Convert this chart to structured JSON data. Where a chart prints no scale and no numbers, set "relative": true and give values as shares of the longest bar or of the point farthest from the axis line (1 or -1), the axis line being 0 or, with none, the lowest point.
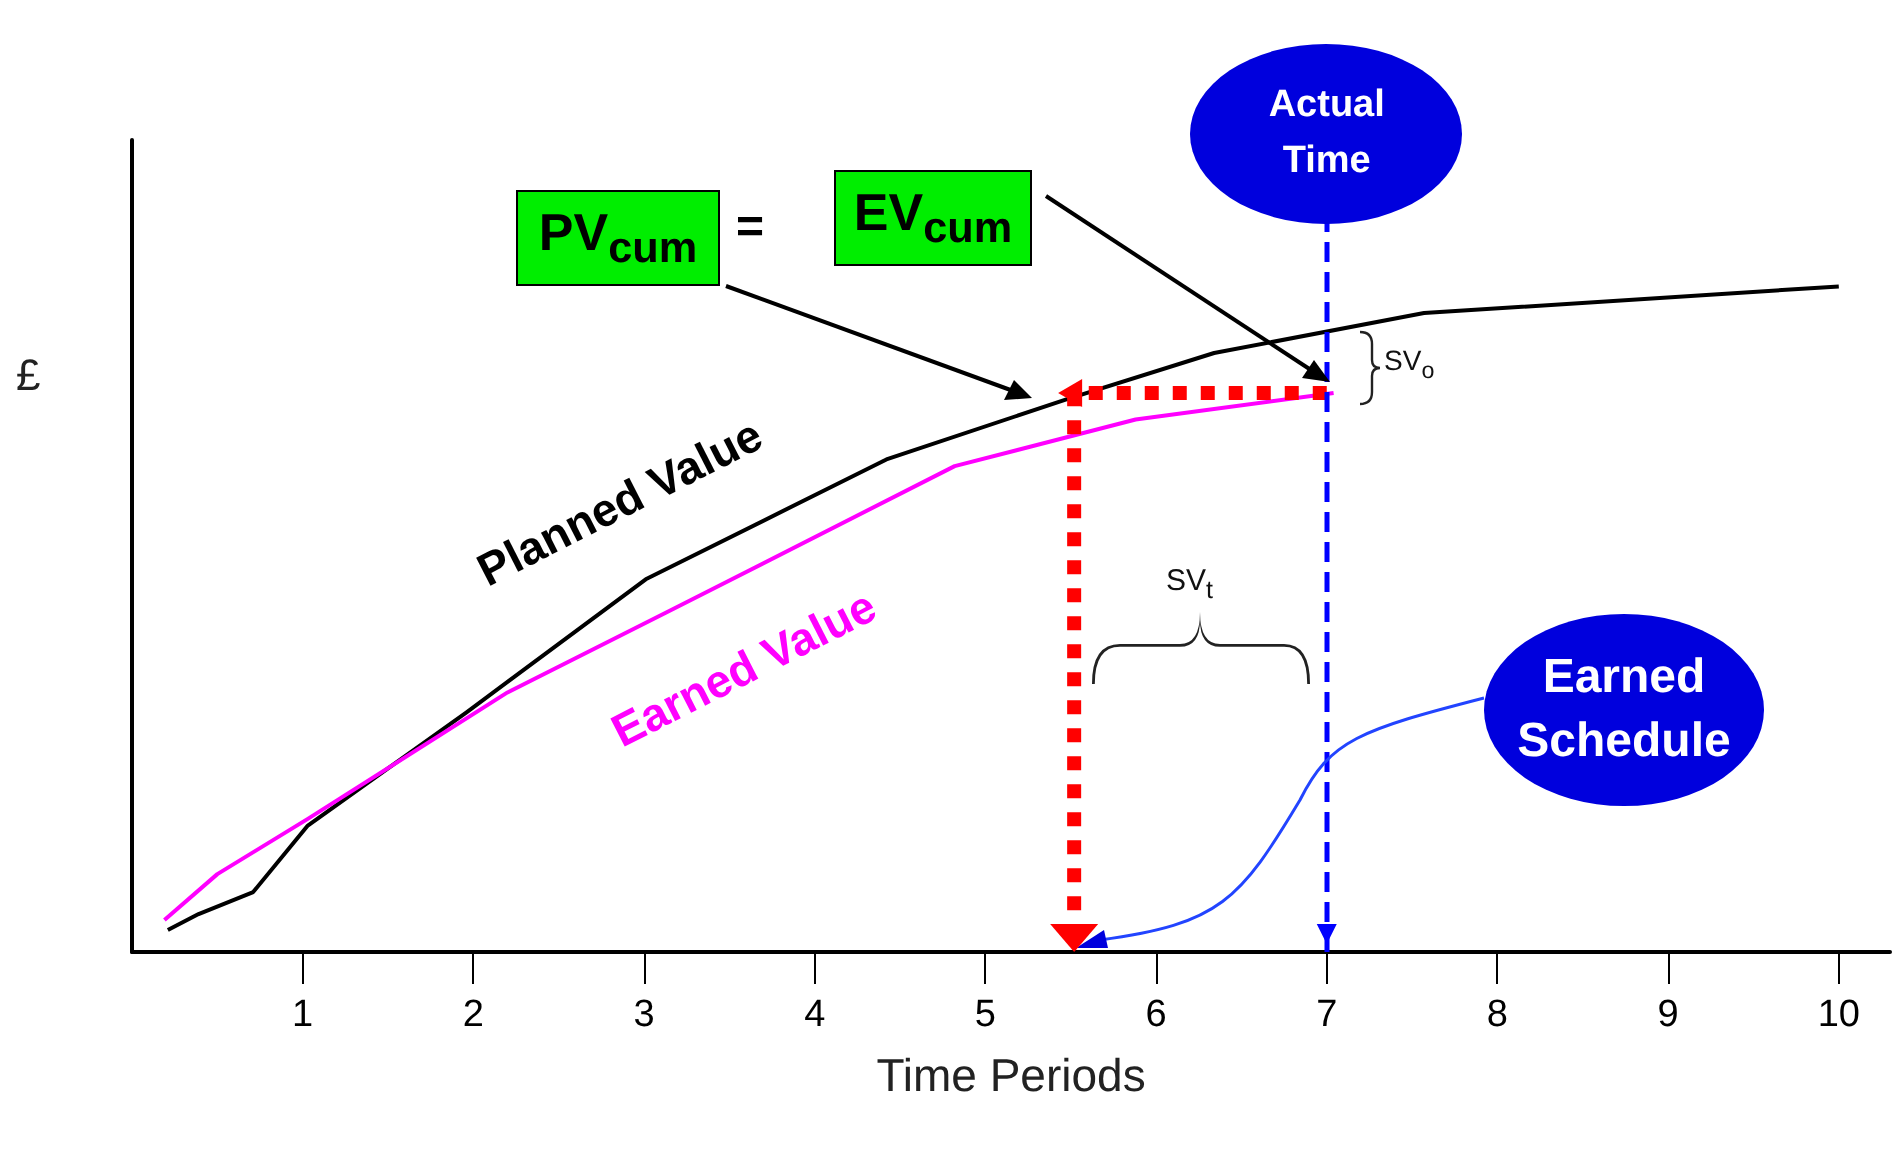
{
  "chart_data": {
    "type": "line",
    "relative": true,
    "xlabel": "Time Periods",
    "ylabel": "£",
    "xlim": [
      0,
      10.3
    ],
    "xticks": [
      1,
      2,
      3,
      4,
      5,
      6,
      7,
      8,
      9,
      10
    ],
    "marker": "none",
    "grid": false,
    "series": [
      {
        "name": "Planned Value",
        "color": "#000000",
        "x": [
          0.21,
          0.39,
          0.71,
          1.03,
          1.96,
          3.01,
          4.42,
          5.47,
          6.34,
          7.57,
          10.0
        ],
        "values": [
          0.033,
          0.057,
          0.09,
          0.19,
          0.36,
          0.56,
          0.74,
          0.83,
          0.9,
          0.96,
          1.0
        ]
      },
      {
        "name": "Earned Value",
        "color": "#ff00ff",
        "x": [
          0.19,
          0.5,
          1.03,
          2.2,
          3.13,
          4.82,
          5.88,
          7.04
        ],
        "values": [
          0.048,
          0.117,
          0.2,
          0.39,
          0.51,
          0.73,
          0.8,
          0.84
        ]
      },
      {
        "color": "#ff0000",
        "line_style": "dotted",
        "x": [
          7.0,
          5.52,
          5.52
        ],
        "values": [
          0.84,
          0.84,
          0
        ]
      }
    ],
    "ref_lines": [
      {
        "axis": "x",
        "value": 7,
        "label": "Actual Time",
        "color": "#0000ff",
        "line_style": "dashed"
      }
    ],
    "annotations": [
      "PV$_{cum}$",
      "=",
      "EV$_{cum}$",
      "SV$_{o}$",
      "SV$_{t}$",
      "Earned Schedule"
    ]
  }
}
